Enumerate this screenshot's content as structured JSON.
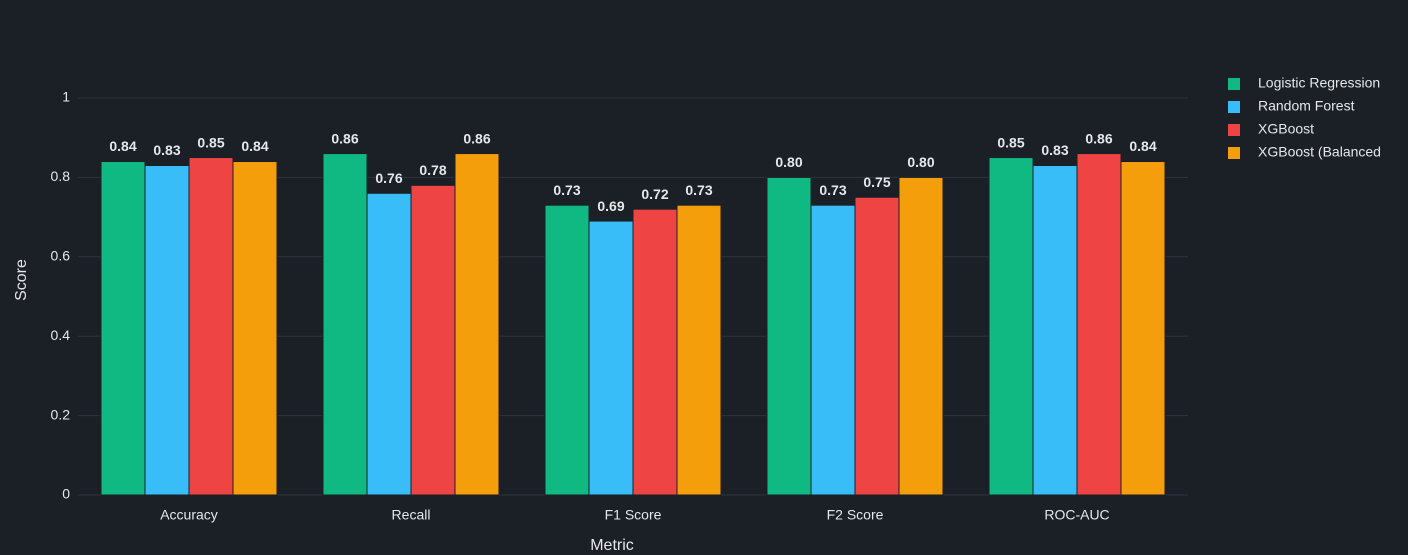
{
  "chart_data": {
    "type": "bar",
    "x_label": "Metric",
    "y_label": "Score",
    "categories": [
      "Accuracy",
      "Recall",
      "F1 Score",
      "F2 Score",
      "ROC-AUC"
    ],
    "series": [
      {
        "name": "Logistic Regression",
        "color": "#10b981",
        "values": [
          0.84,
          0.86,
          0.73,
          0.8,
          0.85
        ],
        "value_labels": [
          "0.84",
          "0.86",
          "0.73",
          "0.80",
          "0.85"
        ]
      },
      {
        "name": "Random Forest",
        "color": "#38bdf8",
        "values": [
          0.83,
          0.76,
          0.69,
          0.73,
          0.83
        ],
        "value_labels": [
          "0.83",
          "0.76",
          "0.69",
          "0.73",
          "0.83"
        ]
      },
      {
        "name": "XGBoost",
        "color": "#ef4444",
        "values": [
          0.85,
          0.78,
          0.72,
          0.75,
          0.86
        ],
        "value_labels": [
          "0.85",
          "0.78",
          "0.72",
          "0.75",
          "0.86"
        ]
      },
      {
        "name": "XGBoost (Balanced",
        "color": "#f59e0b",
        "values": [
          0.84,
          0.86,
          0.73,
          0.8,
          0.84
        ],
        "value_labels": [
          "0.84",
          "0.86",
          "0.73",
          "0.80",
          "0.84"
        ]
      }
    ],
    "ylim": [
      0,
      1.1
    ],
    "yticks": [
      0,
      0.2,
      0.4,
      0.6,
      0.8,
      1
    ],
    "grid": true,
    "legend": "right"
  }
}
